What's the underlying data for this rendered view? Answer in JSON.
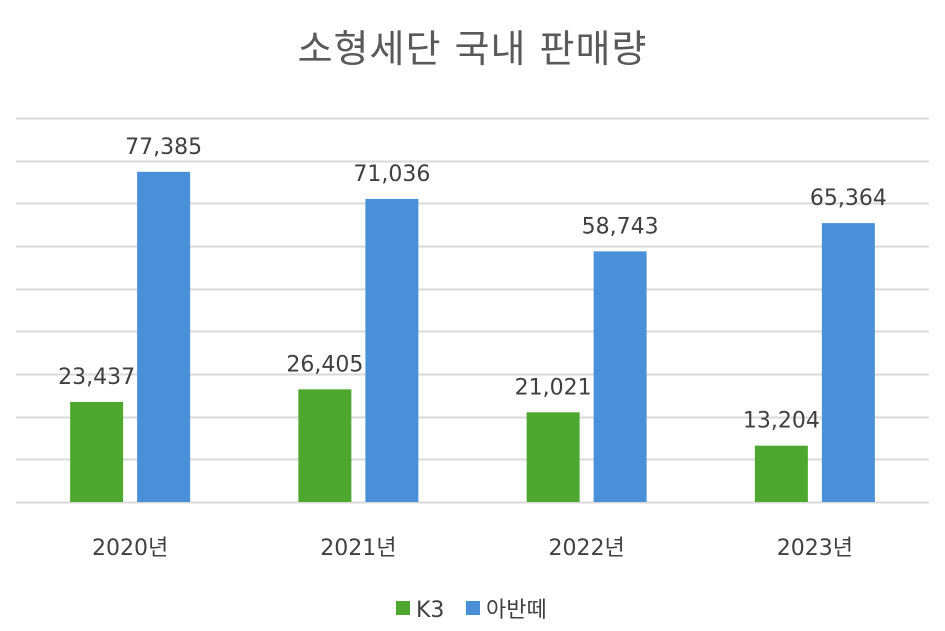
{
  "chart_data": {
    "type": "bar",
    "title": "소형세단 국내 판매량",
    "categories": [
      "2020년",
      "2021년",
      "2022년",
      "2023년"
    ],
    "series": [
      {
        "name": "K3",
        "values": [
          23437,
          26405,
          21021,
          13204
        ],
        "labels": [
          "23,437",
          "26,405",
          "21,021",
          "13,204"
        ],
        "color": "#4ea72e"
      },
      {
        "name": "아반떼",
        "values": [
          77385,
          71036,
          58743,
          65364
        ],
        "labels": [
          "77,385",
          "71,036",
          "58,743",
          "65,364"
        ],
        "color": "#4a90d9"
      }
    ],
    "ylim": [
      0,
      90000
    ],
    "grid": true,
    "gridline_color": "#d9d9d9",
    "legend": "bottom-center",
    "xlabel": "",
    "ylabel": ""
  }
}
